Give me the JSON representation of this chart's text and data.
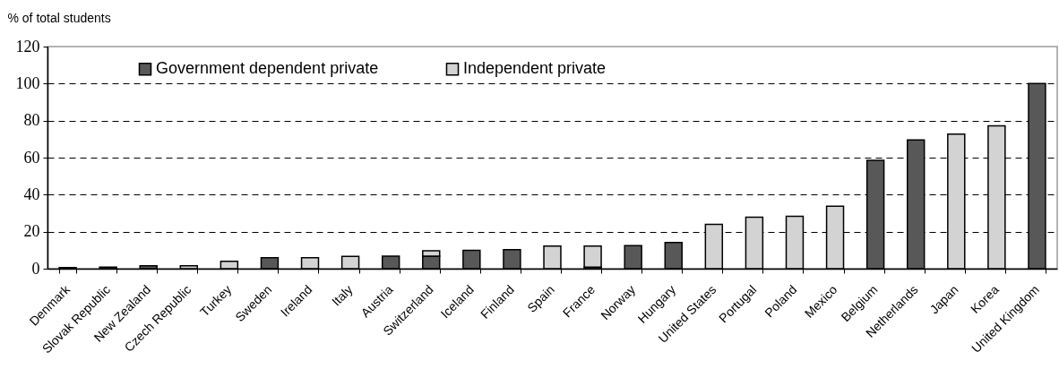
{
  "chart_data": {
    "type": "bar",
    "ylabel": "% of total students",
    "categories": [
      "Denmark",
      "Slovak Republic",
      "New Zealand",
      "Czech Republic",
      "Turkey",
      "Sweden",
      "Ireland",
      "Italy",
      "Austria",
      "Switzerland",
      "Iceland",
      "Finland",
      "Spain",
      "France",
      "Norway",
      "Hungary",
      "United States",
      "Portugal",
      "Poland",
      "Mexico",
      "Belgium",
      "Netherlands",
      "Japan",
      "Korea",
      "United Kingdom"
    ],
    "series": [
      {
        "name": "Government dependent private",
        "color": "#585858",
        "values": [
          0.6,
          0.8,
          1.6,
          null,
          null,
          5.9,
          null,
          null,
          6.8,
          6.8,
          9.9,
          10.3,
          null,
          0.8,
          12.4,
          14.1,
          null,
          null,
          null,
          null,
          58.5,
          69.5,
          null,
          null,
          100
        ]
      },
      {
        "name": "Independent private",
        "color": "#d3d3d3",
        "values": [
          null,
          null,
          null,
          1.6,
          4.0,
          null,
          5.9,
          6.6,
          null,
          2.9,
          null,
          null,
          12.2,
          11.4,
          null,
          null,
          24.0,
          27.8,
          28.3,
          33.8,
          null,
          null,
          72.7,
          77.2,
          null
        ]
      }
    ],
    "stacked": true,
    "ylim": [
      0,
      120
    ],
    "yticks": [
      0,
      20,
      40,
      60,
      80,
      100,
      120
    ],
    "grid": "y",
    "legend": "top"
  }
}
